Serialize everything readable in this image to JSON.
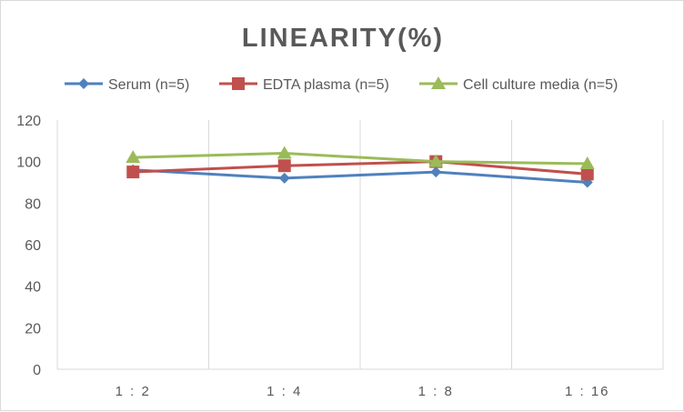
{
  "chart_data": {
    "type": "line",
    "title": "LINEARITY(%)",
    "categories": [
      "1:2",
      "1:4",
      "1:8",
      "1:16"
    ],
    "ylim": [
      0,
      120
    ],
    "yticks": [
      0,
      20,
      40,
      60,
      80,
      100,
      120
    ],
    "grid": "vertical",
    "legend_position": "top",
    "series": [
      {
        "name": "Serum (n=5)",
        "color": "#4f81bd",
        "marker": "diamond",
        "values": [
          96,
          92,
          95,
          90
        ]
      },
      {
        "name": "EDTA plasma (n=5)",
        "color": "#c0504d",
        "marker": "square",
        "values": [
          95,
          98,
          100,
          94
        ]
      },
      {
        "name": "Cell culture media (n=5)",
        "color": "#9bbb59",
        "marker": "triangle",
        "values": [
          102,
          104,
          100,
          99
        ]
      }
    ]
  }
}
